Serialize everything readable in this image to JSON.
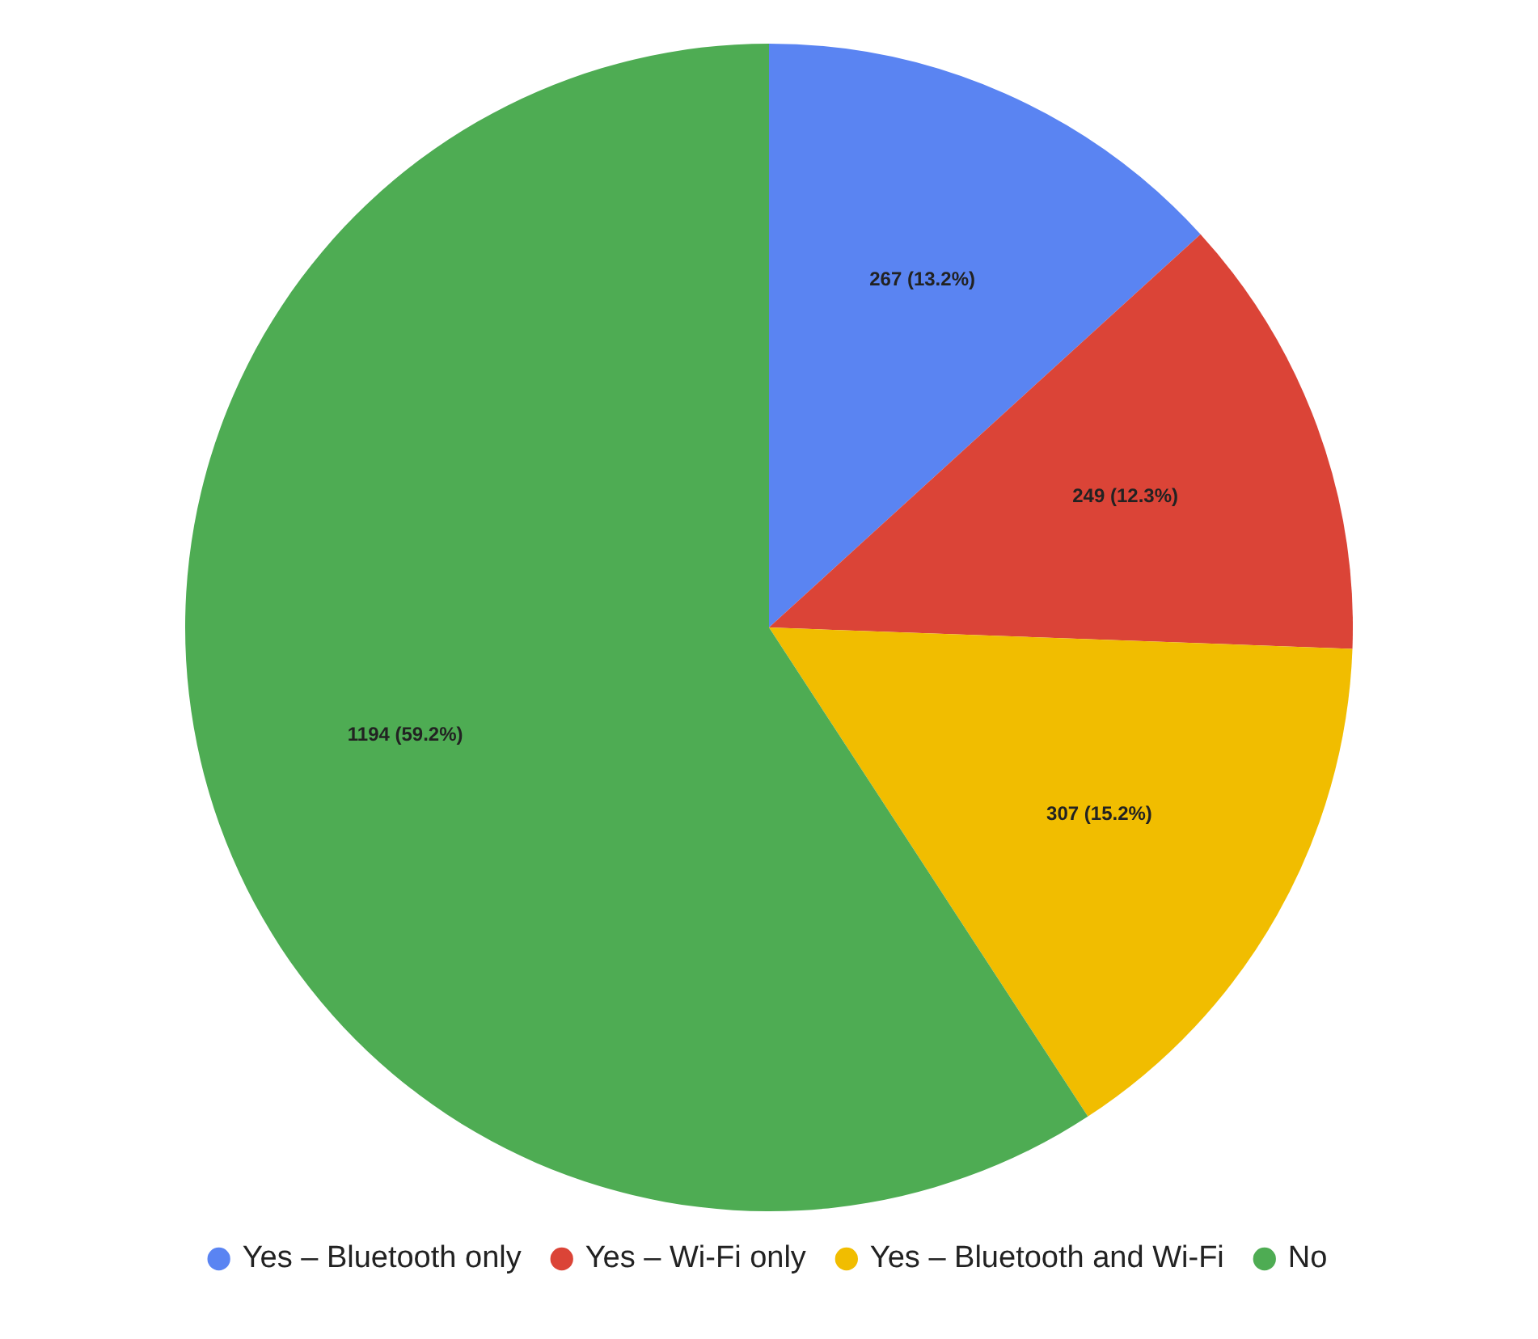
{
  "chart_data": {
    "type": "pie",
    "categories": [
      "Yes – Bluetooth only",
      "Yes – Wi-Fi only",
      "Yes – Bluetooth and Wi-Fi",
      "No"
    ],
    "values": [
      267,
      249,
      307,
      1194
    ],
    "colors": [
      "#5a84f2",
      "#db4437",
      "#f1bd00",
      "#4eac53"
    ],
    "value_labels": [
      "267 (13.2%)",
      "249 (12.3%)",
      "307 (15.2%)",
      "1194 (59.2%)"
    ],
    "legend": "bottom",
    "marker": "circle"
  }
}
